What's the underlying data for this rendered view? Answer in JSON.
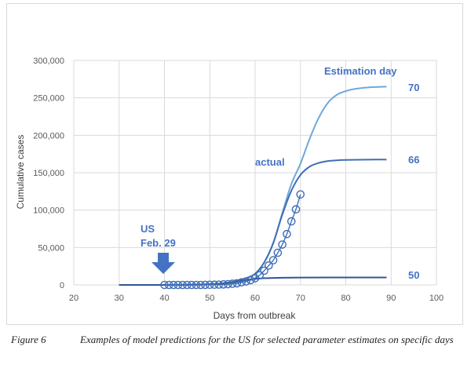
{
  "chart_data": {
    "type": "line",
    "title": "",
    "xlabel": "Days from outbreak",
    "ylabel": "Cumulative cases",
    "xlim": [
      20,
      100
    ],
    "ylim": [
      0,
      300000
    ],
    "x_ticks": [
      20,
      30,
      40,
      50,
      60,
      70,
      80,
      90,
      100
    ],
    "y_ticks": [
      0,
      50000,
      100000,
      150000,
      200000,
      250000,
      300000
    ],
    "y_tick_labels": [
      "0",
      "50,000",
      "100,000",
      "150,000",
      "200,000",
      "250,000",
      "300,000"
    ],
    "grid": true,
    "series": [
      {
        "name": "70",
        "color": "#6fa8dc",
        "x": [
          30,
          40,
          50,
          55,
          58,
          60,
          62,
          64,
          66,
          68,
          70,
          72,
          74,
          76,
          78,
          80,
          82,
          85,
          89
        ],
        "y": [
          0,
          0,
          800,
          4000,
          9000,
          15000,
          30000,
          56000,
          96000,
          135000,
          162000,
          195000,
          223000,
          243000,
          254000,
          259000,
          262000,
          264000,
          265000
        ]
      },
      {
        "name": "66",
        "color": "#3f6eb5",
        "x": [
          30,
          40,
          50,
          55,
          58,
          60,
          62,
          64,
          66,
          68,
          70,
          72,
          74,
          76,
          78,
          80,
          85,
          89
        ],
        "y": [
          0,
          0,
          800,
          4000,
          9000,
          15000,
          30000,
          56000,
          94000,
          126000,
          147000,
          158000,
          163000,
          165500,
          166500,
          167000,
          167500,
          167500
        ]
      },
      {
        "name": "50",
        "color": "#2f5597",
        "x": [
          30,
          40,
          50,
          55,
          58,
          60,
          62,
          65,
          70,
          80,
          89
        ],
        "y": [
          0,
          0,
          800,
          3500,
          6500,
          8000,
          9000,
          9500,
          9800,
          10000,
          10000
        ]
      },
      {
        "name": "actual",
        "color": "#3f6eb5",
        "marker": "circle",
        "x": [
          40,
          41,
          42,
          43,
          44,
          45,
          46,
          47,
          48,
          49,
          50,
          51,
          52,
          53,
          54,
          55,
          56,
          57,
          58,
          59,
          60,
          61,
          62,
          63,
          64,
          65,
          66,
          67,
          68,
          69,
          70
        ],
        "y": [
          0,
          0,
          0,
          0,
          0,
          0,
          0,
          0,
          0,
          100,
          200,
          300,
          400,
          700,
          1000,
          1600,
          2200,
          3500,
          4700,
          6400,
          9000,
          13000,
          19000,
          26000,
          33000,
          43000,
          54000,
          68000,
          85000,
          101000,
          121000
        ]
      }
    ],
    "annotations": {
      "estimation_day_label": "Estimation day",
      "label_70": "70",
      "label_66": "66",
      "label_50": "50",
      "actual_label": "actual",
      "us_label": "US",
      "date_label": "Feb. 29"
    },
    "colors": {
      "arrow": "#4472c4",
      "annotation": "#4472c4",
      "grid": "#d9d9d9"
    }
  },
  "caption": {
    "label": "Figure 6",
    "text": "Examples of model predictions for the US for selected parameter estimates on specific days"
  }
}
